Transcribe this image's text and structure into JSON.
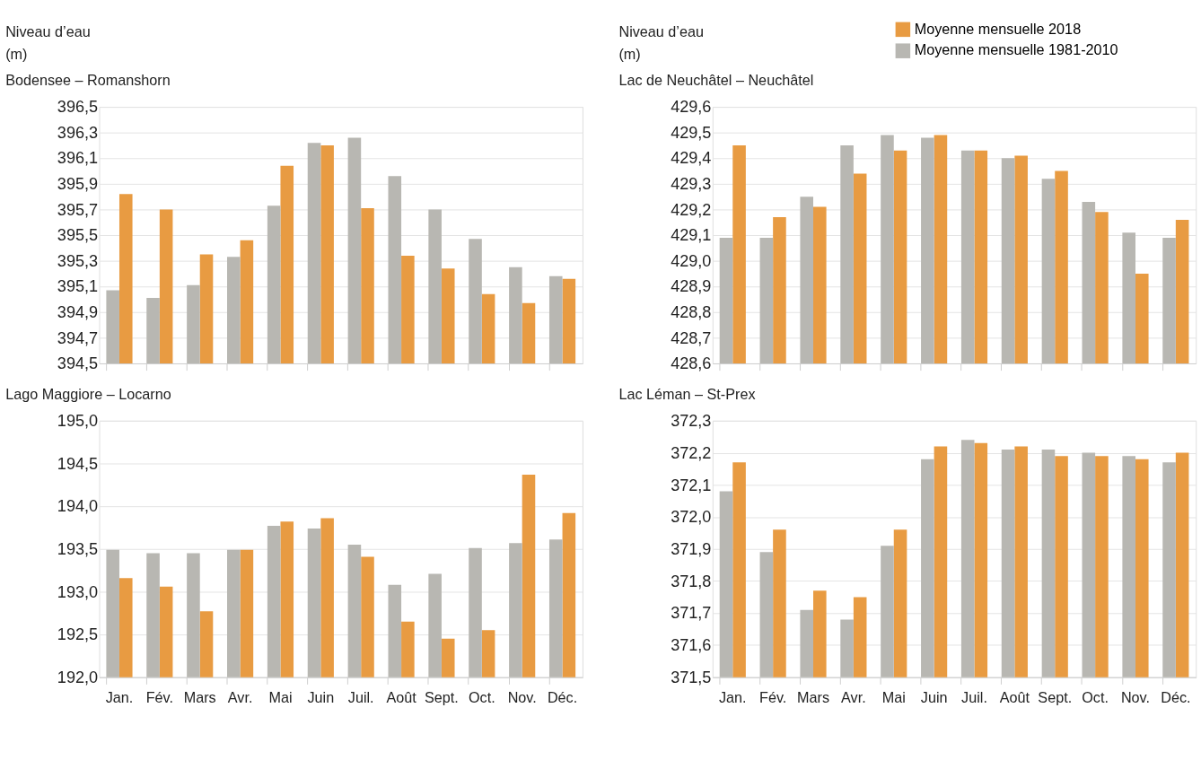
{
  "chart_data": [
    {
      "type": "bar",
      "title": "Bodensee – Romanshorn",
      "ylabel": "Niveau d’eau\n(m)",
      "tick_labels": "y",
      "grid": "y",
      "legend": "top right",
      "categories": [
        "Jan.",
        "Fév.",
        "Mars",
        "Avr.",
        "Mai",
        "Juin",
        "Juil.",
        "Août",
        "Sept.",
        "Oct.",
        "Nov.",
        "Déc."
      ],
      "series": [
        {
          "name": "Moyenne mensuelle 2018",
          "color": "#e89b42",
          "values": [
            395.82,
            395.7,
            395.35,
            395.46,
            396.04,
            396.2,
            395.71,
            395.34,
            395.24,
            395.04,
            394.97,
            395.16
          ]
        },
        {
          "name": "Moyenne mensuelle 1981-2010",
          "color": "#b8b7b2",
          "values": [
            395.07,
            395.01,
            395.11,
            395.33,
            395.73,
            396.22,
            396.26,
            395.96,
            395.7,
            395.47,
            395.25,
            395.18
          ]
        }
      ],
      "ylim": [
        394.5,
        396.5
      ],
      "yticks": [
        {
          "value": 394.5,
          "label": "394,5"
        },
        {
          "value": 394.7,
          "label": "394,7"
        },
        {
          "value": 394.9,
          "label": "394,9"
        },
        {
          "value": 395.1,
          "label": "395,1"
        },
        {
          "value": 395.3,
          "label": "395,3"
        },
        {
          "value": 395.5,
          "label": "395,5"
        },
        {
          "value": 395.7,
          "label": "395,7"
        },
        {
          "value": 395.9,
          "label": "395,9"
        },
        {
          "value": 396.1,
          "label": "396,1"
        },
        {
          "value": 396.3,
          "label": "396,3"
        },
        {
          "value": 396.5,
          "label": "396,5"
        }
      ]
    },
    {
      "type": "bar",
      "title": "Lac de Neuchâtel – Neuchâtel",
      "ylabel": "Niveau d’eau\n(m)",
      "tick_labels": "y",
      "grid": "y",
      "categories": [
        "Jan.",
        "Fév.",
        "Mars",
        "Avr.",
        "Mai",
        "Juin",
        "Juil.",
        "Août",
        "Sept.",
        "Oct.",
        "Nov.",
        "Déc."
      ],
      "series": [
        {
          "name": "Moyenne mensuelle 2018",
          "color": "#e89b42",
          "values": [
            429.45,
            429.17,
            429.21,
            429.34,
            429.43,
            429.49,
            429.43,
            429.41,
            429.35,
            429.19,
            428.95,
            429.16
          ]
        },
        {
          "name": "Moyenne mensuelle 1981-2010",
          "color": "#b8b7b2",
          "values": [
            429.09,
            429.09,
            429.25,
            429.45,
            429.49,
            429.48,
            429.43,
            429.4,
            429.32,
            429.23,
            429.11,
            429.09
          ]
        }
      ],
      "ylim": [
        428.6,
        429.6
      ],
      "yticks": [
        {
          "value": 428.6,
          "label": "428,6"
        },
        {
          "value": 428.7,
          "label": "428,7"
        },
        {
          "value": 428.8,
          "label": "428,8"
        },
        {
          "value": 428.9,
          "label": "428,9"
        },
        {
          "value": 429.0,
          "label": "429,0"
        },
        {
          "value": 429.1,
          "label": "429,1"
        },
        {
          "value": 429.2,
          "label": "429,2"
        },
        {
          "value": 429.3,
          "label": "429,3"
        },
        {
          "value": 429.4,
          "label": "429,4"
        },
        {
          "value": 429.5,
          "label": "429,5"
        },
        {
          "value": 429.6,
          "label": "429,6"
        }
      ]
    },
    {
      "type": "bar",
      "title": "Lago Maggiore – Locarno",
      "grid": "y",
      "categories": [
        "Jan.",
        "Fév.",
        "Mars",
        "Avr.",
        "Mai",
        "Juin",
        "Juil.",
        "Août",
        "Sept.",
        "Oct.",
        "Nov.",
        "Déc."
      ],
      "series": [
        {
          "name": "Moyenne mensuelle 2018",
          "color": "#e89b42",
          "values": [
            193.16,
            193.06,
            192.77,
            193.49,
            193.82,
            193.86,
            193.41,
            192.65,
            192.45,
            192.55,
            194.37,
            193.92
          ]
        },
        {
          "name": "Moyenne mensuelle 1981-2010",
          "color": "#b8b7b2",
          "values": [
            193.49,
            193.45,
            193.45,
            193.49,
            193.77,
            193.74,
            193.55,
            193.08,
            193.21,
            193.51,
            193.57,
            193.61
          ]
        }
      ],
      "ylim": [
        192.0,
        195.0
      ],
      "yticks": [
        {
          "value": 192.0,
          "label": "192,0"
        },
        {
          "value": 192.5,
          "label": "192,5"
        },
        {
          "value": 193.0,
          "label": "193,0"
        },
        {
          "value": 193.5,
          "label": "193,5"
        },
        {
          "value": 194.0,
          "label": "194,0"
        },
        {
          "value": 194.5,
          "label": "194,5"
        },
        {
          "value": 195.0,
          "label": "195,0"
        }
      ]
    },
    {
      "type": "bar",
      "title": "Lac Léman – St-Prex",
      "grid": "y",
      "categories": [
        "Jan.",
        "Fév.",
        "Mars",
        "Avr.",
        "Mai",
        "Juin",
        "Juil.",
        "Août",
        "Sept.",
        "Oct.",
        "Nov.",
        "Déc."
      ],
      "series": [
        {
          "name": "Moyenne mensuelle 2018",
          "color": "#e89b42",
          "values": [
            372.17,
            371.96,
            371.77,
            371.75,
            371.96,
            372.22,
            372.23,
            372.22,
            372.19,
            372.19,
            372.18,
            372.2
          ]
        },
        {
          "name": "Moyenne mensuelle 1981-2010",
          "color": "#b8b7b2",
          "values": [
            372.08,
            371.89,
            371.71,
            371.68,
            371.91,
            372.18,
            372.24,
            372.21,
            372.21,
            372.2,
            372.19,
            372.17
          ]
        }
      ],
      "ylim": [
        371.5,
        372.3
      ],
      "yticks": [
        {
          "value": 371.5,
          "label": "371,5"
        },
        {
          "value": 371.6,
          "label": "371,6"
        },
        {
          "value": 371.7,
          "label": "371,7"
        },
        {
          "value": 371.8,
          "label": "371,8"
        },
        {
          "value": 371.9,
          "label": "371,9"
        },
        {
          "value": 372.0,
          "label": "372,0"
        },
        {
          "value": 372.1,
          "label": "372,1"
        },
        {
          "value": 372.2,
          "label": "372,2"
        },
        {
          "value": 372.3,
          "label": "372,3"
        }
      ]
    }
  ]
}
